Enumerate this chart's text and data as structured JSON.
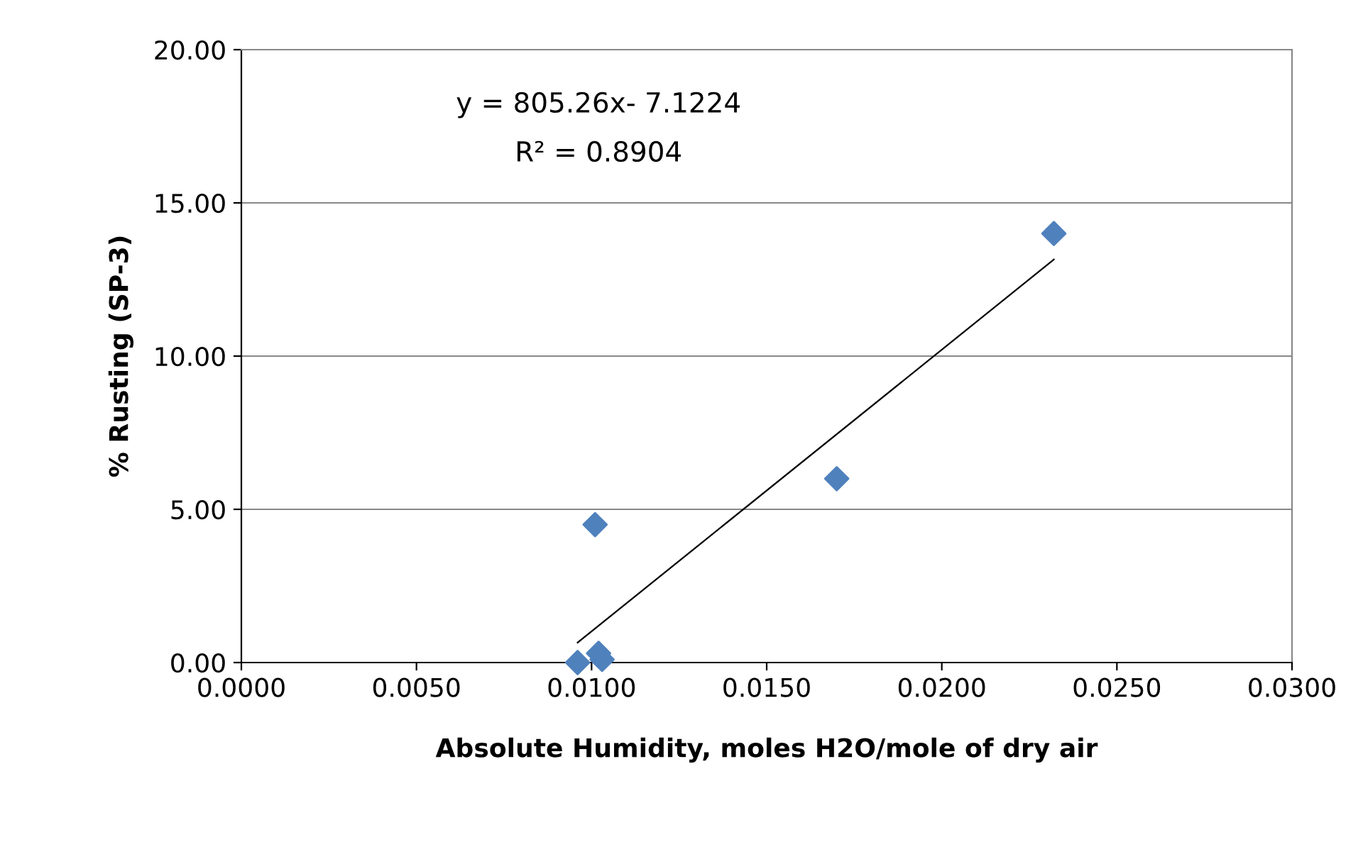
{
  "chart_data": {
    "type": "scatter",
    "xlabel": "Absolute Humidity, moles H2O/mole of dry air",
    "ylabel": "% Rusting (SP-3)",
    "annotations": [
      "y = 805.26x- 7.1224",
      "R² = 0.8904"
    ],
    "series": [
      {
        "color": "#4f81bd",
        "marker": "diamond",
        "x": [
          0.0096,
          0.0101,
          0.0102,
          0.0103,
          0.017,
          0.0232
        ],
        "values": [
          0.0,
          4.5,
          0.3,
          0.1,
          6.0,
          14.0
        ]
      },
      {
        "type": "line",
        "color": "#000000",
        "marker": "none",
        "x": [
          0.0096,
          0.0232
        ],
        "values": [
          0.65,
          13.15
        ]
      }
    ],
    "xlim": [
      0,
      0.03
    ],
    "xticks": [
      {
        "value": 0,
        "label": "0.0000"
      },
      {
        "value": 0.005,
        "label": "0.0050"
      },
      {
        "value": 0.01,
        "label": "0.0100"
      },
      {
        "value": 0.015,
        "label": "0.0150"
      },
      {
        "value": 0.02,
        "label": "0.0200"
      },
      {
        "value": 0.025,
        "label": "0.0250"
      },
      {
        "value": 0.03,
        "label": "0.0300"
      }
    ],
    "ylim": [
      0,
      20
    ],
    "yticks": [
      {
        "value": 0,
        "label": "0.00"
      },
      {
        "value": 5,
        "label": "5.00"
      },
      {
        "value": 10,
        "label": "10.00"
      },
      {
        "value": 15,
        "label": "15.00"
      },
      {
        "value": 20,
        "label": "20.00"
      }
    ],
    "grid": "y"
  }
}
